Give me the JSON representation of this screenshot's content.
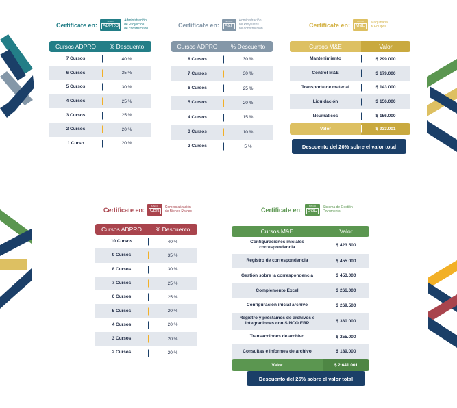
{
  "colors": {
    "teal": "#237e87",
    "slate": "#8497a8",
    "gold": "#ddc062",
    "maroon": "#a9444d",
    "green": "#5b9650",
    "navy": "#1b3f68",
    "row_shade": "#e3e7ed"
  },
  "cert_label": "Certificate en:",
  "badge_small": "SINCO",
  "sections": {
    "adpro": {
      "badge_code": "ADPRO",
      "badge_desc": "Administración\nde Proyectos\nde construcción",
      "headers": [
        "Cursos ADPRO",
        "% Descuento"
      ],
      "rows": [
        [
          "7 Cursos",
          "40 %"
        ],
        [
          "6 Cursos",
          "35 %"
        ],
        [
          "5 Cursos",
          "30 %"
        ],
        [
          "4 Cursos",
          "25 %"
        ],
        [
          "3 Cursos",
          "25 %"
        ],
        [
          "2 Cursos",
          "20 %"
        ],
        [
          "1 Curso",
          "20 %"
        ]
      ]
    },
    "af": {
      "badge_code": "A&F",
      "badge_desc": "Administración\nde Proyectos\nde construcción",
      "headers": [
        "Cursos ADPRO",
        "% Descuento"
      ],
      "rows": [
        [
          "8 Cursos",
          "30 %"
        ],
        [
          "7 Cursos",
          "30 %"
        ],
        [
          "6 Cursos",
          "25 %"
        ],
        [
          "5 Cursos",
          "20 %"
        ],
        [
          "4 Cursos",
          "15 %"
        ],
        [
          "3 Cursos",
          "10 %"
        ],
        [
          "2 Cursos",
          "5 %"
        ]
      ]
    },
    "me": {
      "badge_code": "M&E",
      "badge_desc": "Maquinaria\n& Equipos",
      "headers": [
        "Cursos M&E",
        "Valor"
      ],
      "rows": [
        [
          "Mantenimiento",
          "$ 299.000"
        ],
        [
          "Control M&E",
          "$ 179.000"
        ],
        [
          "Transporte de material",
          "$ 143.000"
        ],
        [
          "Liquidación",
          "$ 156.000"
        ],
        [
          "Neumaticos",
          "$ 156.000"
        ]
      ],
      "total": [
        "Valor",
        "$ 933.001"
      ],
      "note": "Descuento del 20% sobre el valor total"
    },
    "cbr": {
      "badge_code": "CBR",
      "badge_desc": "Comercialización\nde Bienes Raíces",
      "headers": [
        "Cursos ADPRO",
        "% Descuento"
      ],
      "rows": [
        [
          "10 Cursos",
          "40 %"
        ],
        [
          "9 Cursos",
          "35 %"
        ],
        [
          "8 Cursos",
          "30 %"
        ],
        [
          "7 Cursos",
          "25 %"
        ],
        [
          "6 Cursos",
          "25 %"
        ],
        [
          "5 Cursos",
          "20 %"
        ],
        [
          "4 Cursos",
          "20 %"
        ],
        [
          "3 Cursos",
          "20 %"
        ],
        [
          "2 Cursos",
          "20 %"
        ]
      ]
    },
    "sgd": {
      "badge_code": "SGD",
      "badge_desc": "Sistema de Gestión\nDocumental",
      "headers": [
        "Cursos M&E",
        "Valor"
      ],
      "rows": [
        [
          "Configuraciones iniciales correspondencia",
          "$ 423.500"
        ],
        [
          "Registro de correspondencia",
          "$ 455.000"
        ],
        [
          "Gestión sobre la correspondencia",
          "$ 453.000"
        ],
        [
          "Complemento Excel",
          "$ 266.000"
        ],
        [
          "Configuración inicial archivo",
          "$ 269.500"
        ],
        [
          "Registro y préstamos de archivos e integraciones con SINCO ERP",
          "$ 330.000"
        ],
        [
          "Transacciones de archivo",
          "$ 255.000"
        ],
        [
          "Consultas e informes de archivo",
          "$ 189.000"
        ]
      ],
      "total": [
        "Valor",
        "$ 2.641.001"
      ],
      "note": "Descuento del 25% sobre el valor total"
    }
  }
}
